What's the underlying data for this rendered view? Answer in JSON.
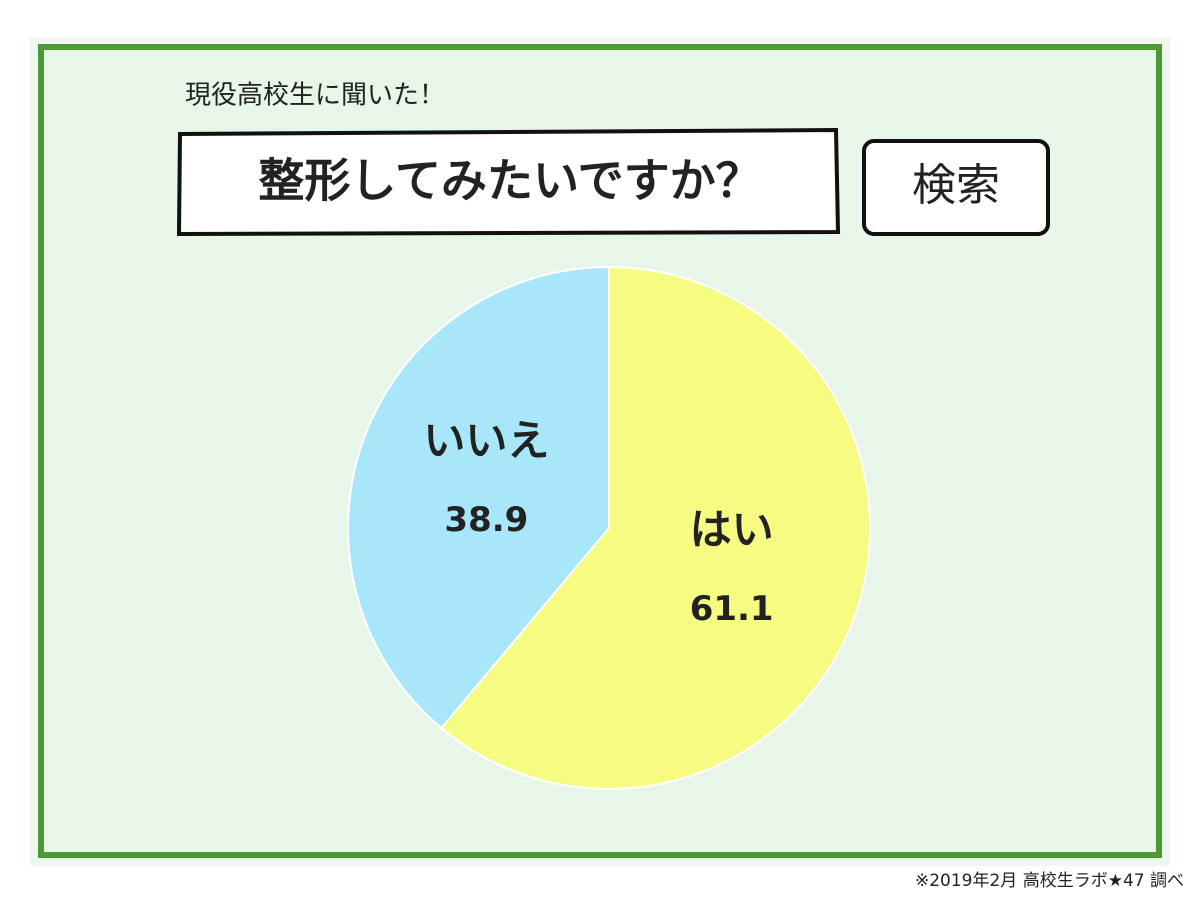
{
  "chart_data": {
    "type": "pie",
    "subtitle": "現役高校生に聞いた！",
    "title": "整形してみたいですか？",
    "search_button": "検索",
    "categories": [
      "はい",
      "いいえ"
    ],
    "values": [
      61.1,
      38.9
    ],
    "colors": [
      "#f6fb82",
      "#a8e7f9"
    ],
    "source": "※2019年2月 高校生ラボ★47 調べ"
  }
}
